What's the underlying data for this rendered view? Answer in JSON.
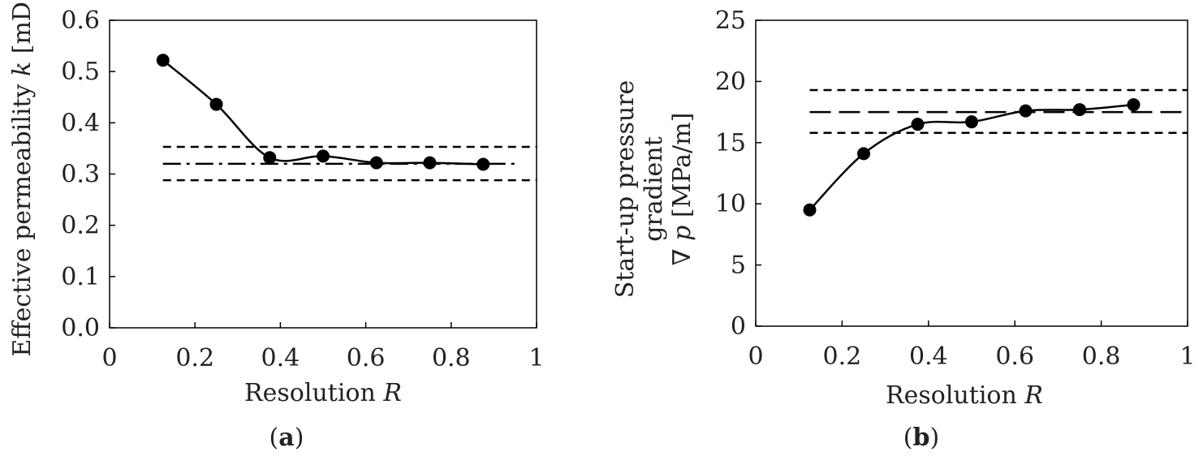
{
  "chart_data": [
    {
      "type": "line",
      "caption": "a",
      "xlabel": {
        "text": "Resolution ",
        "var": "R"
      },
      "ylabel": {
        "text": "Effective permeability ",
        "var": "k",
        "unit": " [mD]"
      },
      "xlim": [
        0,
        1
      ],
      "ylim": [
        0.0,
        0.6
      ],
      "xticks": [
        "0",
        "0.2",
        "0.4",
        "0.6",
        "0.8",
        "1"
      ],
      "yticks": [
        "0.0",
        "0.1",
        "0.2",
        "0.3",
        "0.4",
        "0.5",
        "0.6"
      ],
      "x": [
        0.125,
        0.25,
        0.375,
        0.5,
        0.625,
        0.75,
        0.875
      ],
      "y": [
        0.522,
        0.436,
        0.332,
        0.335,
        0.322,
        0.322,
        0.319
      ],
      "reference_lines": [
        {
          "style": "dashed",
          "y": 0.353,
          "x": [
            0.125,
            1.0
          ]
        },
        {
          "style": "dashdot",
          "y": 0.32,
          "x": [
            0.125,
            0.95
          ]
        },
        {
          "style": "dashed",
          "y": 0.288,
          "x": [
            0.125,
            1.0
          ]
        }
      ]
    },
    {
      "type": "line",
      "caption": "b",
      "xlabel": {
        "text": "Resolution ",
        "var": "R"
      },
      "ylabel": {
        "line1": "Start-up pressure",
        "line2": "gradient",
        "symbol": "∇ p",
        "unit": " [MPa/m]"
      },
      "xlim": [
        0,
        1
      ],
      "ylim": [
        0,
        25
      ],
      "xticks": [
        "0",
        "0.2",
        "0.4",
        "0.6",
        "0.8",
        "1"
      ],
      "yticks": [
        "0",
        "5",
        "10",
        "15",
        "20",
        "25"
      ],
      "x": [
        0.125,
        0.25,
        0.375,
        0.5,
        0.625,
        0.75,
        0.875
      ],
      "y": [
        9.5,
        14.1,
        16.5,
        16.7,
        17.6,
        17.7,
        18.1
      ],
      "reference_lines": [
        {
          "style": "dashed",
          "y": 19.3,
          "x": [
            0.125,
            1.0
          ]
        },
        {
          "style": "longdash",
          "y": 17.5,
          "x": [
            0.125,
            1.0
          ]
        },
        {
          "style": "dashed",
          "y": 15.8,
          "x": [
            0.125,
            1.0
          ]
        }
      ]
    }
  ]
}
